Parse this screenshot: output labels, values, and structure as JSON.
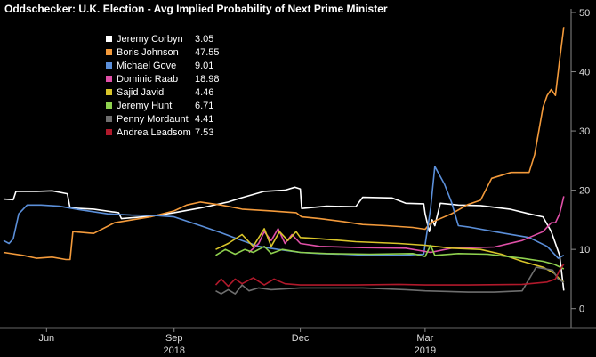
{
  "chart_data": {
    "type": "line",
    "title": "Oddschecker: U.K. Election - Avg Implied Probability of Next Prime Minister",
    "ylim": [
      -2,
      50
    ],
    "yticks": [
      0,
      10,
      20,
      30,
      40,
      50
    ],
    "x_range": [
      "2018-05-01",
      "2019-06-13"
    ],
    "x_tick_labels": [
      {
        "label": "Jun",
        "date": "2018-06-01"
      },
      {
        "label": "Sep",
        "date": "2018-09-01"
      },
      {
        "label": "Dec",
        "date": "2018-12-01"
      },
      {
        "label": "Mar",
        "date": "2019-03-01"
      }
    ],
    "year_labels": [
      {
        "label": "2018",
        "date": "2018-09-01"
      },
      {
        "label": "2019",
        "date": "2019-03-01"
      }
    ],
    "grid": false,
    "legend_position": "top-left",
    "series": [
      {
        "name": "Jeremy Corbyn",
        "last": "3.05",
        "color": "#ffffff",
        "points": [
          [
            "2018-05-01",
            18.5
          ],
          [
            "2018-05-08",
            18.4
          ],
          [
            "2018-05-10",
            19.8
          ],
          [
            "2018-05-25",
            19.8
          ],
          [
            "2018-06-05",
            19.9
          ],
          [
            "2018-06-16",
            19.4
          ],
          [
            "2018-06-18",
            17
          ],
          [
            "2018-07-05",
            16.8
          ],
          [
            "2018-07-23",
            16.2
          ],
          [
            "2018-07-25",
            15.2
          ],
          [
            "2018-08-15",
            15.6
          ],
          [
            "2018-09-01",
            16.2
          ],
          [
            "2018-09-20",
            17
          ],
          [
            "2018-10-10",
            18
          ],
          [
            "2018-10-18",
            18.6
          ],
          [
            "2018-11-05",
            19.8
          ],
          [
            "2018-11-20",
            20
          ],
          [
            "2018-11-27",
            20.5
          ],
          [
            "2018-12-01",
            20.2
          ],
          [
            "2018-12-02",
            16.9
          ],
          [
            "2018-12-20",
            17.3
          ],
          [
            "2019-01-10",
            17.2
          ],
          [
            "2019-01-15",
            18.8
          ],
          [
            "2019-02-05",
            18.7
          ],
          [
            "2019-02-15",
            17.8
          ],
          [
            "2019-02-28",
            17.7
          ],
          [
            "2019-03-01",
            16
          ],
          [
            "2019-03-04",
            13
          ],
          [
            "2019-03-06",
            15
          ],
          [
            "2019-03-08",
            14
          ],
          [
            "2019-03-12",
            17.8
          ],
          [
            "2019-03-25",
            17.5
          ],
          [
            "2019-04-10",
            17.4
          ],
          [
            "2019-05-01",
            16.8
          ],
          [
            "2019-05-15",
            16
          ],
          [
            "2019-05-25",
            15.5
          ],
          [
            "2019-05-31",
            13
          ],
          [
            "2019-06-06",
            9
          ],
          [
            "2019-06-09",
            3.05
          ]
        ]
      },
      {
        "name": "Boris Johnson",
        "last": "47.55",
        "color": "#f39a3b",
        "points": [
          [
            "2018-05-01",
            9.5
          ],
          [
            "2018-05-15",
            9
          ],
          [
            "2018-05-25",
            8.5
          ],
          [
            "2018-06-05",
            8.7
          ],
          [
            "2018-06-15",
            8.3
          ],
          [
            "2018-06-18",
            8.3
          ],
          [
            "2018-06-20",
            13
          ],
          [
            "2018-07-05",
            12.7
          ],
          [
            "2018-07-20",
            14.5
          ],
          [
            "2018-08-15",
            15.5
          ],
          [
            "2018-09-01",
            16.5
          ],
          [
            "2018-09-10",
            17.5
          ],
          [
            "2018-09-20",
            18
          ],
          [
            "2018-10-05",
            17.5
          ],
          [
            "2018-10-20",
            16.8
          ],
          [
            "2018-11-10",
            16.5
          ],
          [
            "2018-11-28",
            16.2
          ],
          [
            "2018-12-02",
            15.5
          ],
          [
            "2018-12-15",
            15.2
          ],
          [
            "2019-01-01",
            14.7
          ],
          [
            "2019-01-15",
            14.2
          ],
          [
            "2019-02-01",
            14
          ],
          [
            "2019-02-20",
            13.7
          ],
          [
            "2019-03-01",
            13.4
          ],
          [
            "2019-03-05",
            14.5
          ],
          [
            "2019-03-20",
            16
          ],
          [
            "2019-04-01",
            17.6
          ],
          [
            "2019-04-10",
            18.3
          ],
          [
            "2019-04-18",
            22
          ],
          [
            "2019-05-02",
            23
          ],
          [
            "2019-05-15",
            23
          ],
          [
            "2019-05-19",
            26
          ],
          [
            "2019-05-25",
            34
          ],
          [
            "2019-05-28",
            36
          ],
          [
            "2019-05-31",
            37
          ],
          [
            "2019-06-03",
            36
          ],
          [
            "2019-06-06",
            42
          ],
          [
            "2019-06-09",
            47.55
          ]
        ]
      },
      {
        "name": "Michael Gove",
        "last": "9.01",
        "color": "#5b8fd9",
        "points": [
          [
            "2018-05-01",
            11.5
          ],
          [
            "2018-05-05",
            11
          ],
          [
            "2018-05-08",
            11.8
          ],
          [
            "2018-05-12",
            16
          ],
          [
            "2018-05-18",
            17.5
          ],
          [
            "2018-05-28",
            17.5
          ],
          [
            "2018-06-10",
            17.3
          ],
          [
            "2018-06-25",
            16.7
          ],
          [
            "2018-07-15",
            16
          ],
          [
            "2018-08-01",
            15.8
          ],
          [
            "2018-08-20",
            15.7
          ],
          [
            "2018-09-01",
            15.5
          ],
          [
            "2018-09-20",
            14
          ],
          [
            "2018-10-05",
            12.8
          ],
          [
            "2018-10-20",
            11.5
          ],
          [
            "2018-11-01",
            10.5
          ],
          [
            "2018-11-15",
            10
          ],
          [
            "2018-12-01",
            9.5
          ],
          [
            "2018-12-15",
            9.3
          ],
          [
            "2019-01-01",
            9.2
          ],
          [
            "2019-01-20",
            9
          ],
          [
            "2019-02-10",
            9
          ],
          [
            "2019-02-28",
            9.2
          ],
          [
            "2019-03-05",
            17
          ],
          [
            "2019-03-08",
            24
          ],
          [
            "2019-03-15",
            21
          ],
          [
            "2019-03-20",
            18
          ],
          [
            "2019-03-25",
            14
          ],
          [
            "2019-04-01",
            13.8
          ],
          [
            "2019-04-20",
            13
          ],
          [
            "2019-05-15",
            12
          ],
          [
            "2019-05-28",
            10.5
          ],
          [
            "2019-06-05",
            8.5
          ],
          [
            "2019-06-09",
            9.01
          ]
        ]
      },
      {
        "name": "Dominic Raab",
        "last": "18.98",
        "color": "#e050a8",
        "points": [
          [
            "2018-10-25",
            9.5
          ],
          [
            "2018-11-01",
            11
          ],
          [
            "2018-11-05",
            13
          ],
          [
            "2018-11-10",
            11.5
          ],
          [
            "2018-11-15",
            13.5
          ],
          [
            "2018-11-20",
            11
          ],
          [
            "2018-11-25",
            12.5
          ],
          [
            "2018-12-01",
            11
          ],
          [
            "2018-12-15",
            10.5
          ],
          [
            "2019-01-15",
            10.3
          ],
          [
            "2019-02-15",
            10.2
          ],
          [
            "2019-03-05",
            9.5
          ],
          [
            "2019-03-20",
            10.2
          ],
          [
            "2019-04-20",
            10.4
          ],
          [
            "2019-05-10",
            11.5
          ],
          [
            "2019-05-25",
            13
          ],
          [
            "2019-05-31",
            14.5
          ],
          [
            "2019-06-03",
            14.5
          ],
          [
            "2019-06-06",
            16
          ],
          [
            "2019-06-09",
            18.98
          ]
        ]
      },
      {
        "name": "Sajid Javid",
        "last": "4.46",
        "color": "#d9c52a",
        "points": [
          [
            "2018-10-01",
            10
          ],
          [
            "2018-10-10",
            11
          ],
          [
            "2018-10-20",
            12.5
          ],
          [
            "2018-10-28",
            10.5
          ],
          [
            "2018-11-05",
            13.5
          ],
          [
            "2018-11-10",
            10.5
          ],
          [
            "2018-11-16",
            13
          ],
          [
            "2018-11-22",
            11.5
          ],
          [
            "2018-11-28",
            13
          ],
          [
            "2018-12-01",
            12
          ],
          [
            "2018-12-15",
            11.8
          ],
          [
            "2019-01-10",
            11.3
          ],
          [
            "2019-02-10",
            11
          ],
          [
            "2019-03-01",
            10.7
          ],
          [
            "2019-03-20",
            10.2
          ],
          [
            "2019-04-10",
            10
          ],
          [
            "2019-04-25",
            9.2
          ],
          [
            "2019-05-10",
            8
          ],
          [
            "2019-05-25",
            7
          ],
          [
            "2019-06-02",
            6
          ],
          [
            "2019-06-06",
            5
          ],
          [
            "2019-06-09",
            4.46
          ]
        ]
      },
      {
        "name": "Jeremy Hunt",
        "last": "6.71",
        "color": "#8fd14f",
        "points": [
          [
            "2018-10-01",
            9
          ],
          [
            "2018-10-08",
            10
          ],
          [
            "2018-10-15",
            9.2
          ],
          [
            "2018-10-22",
            10
          ],
          [
            "2018-10-28",
            9.5
          ],
          [
            "2018-11-05",
            10.5
          ],
          [
            "2018-11-10",
            9.3
          ],
          [
            "2018-11-18",
            10
          ],
          [
            "2018-12-01",
            9.5
          ],
          [
            "2018-12-20",
            9.3
          ],
          [
            "2019-01-20",
            9.2
          ],
          [
            "2019-02-20",
            9.3
          ],
          [
            "2019-03-01",
            8.8
          ],
          [
            "2019-03-05",
            10.7
          ],
          [
            "2019-03-08",
            9
          ],
          [
            "2019-03-25",
            9.3
          ],
          [
            "2019-04-15",
            9.2
          ],
          [
            "2019-05-10",
            8.5
          ],
          [
            "2019-05-25",
            8
          ],
          [
            "2019-06-02",
            7.5
          ],
          [
            "2019-06-09",
            6.71
          ]
        ]
      },
      {
        "name": "Penny Mordaunt",
        "last": "4.41",
        "color": "#6e6e6e",
        "points": [
          [
            "2018-10-01",
            3
          ],
          [
            "2018-10-05",
            2.5
          ],
          [
            "2018-10-10",
            3.2
          ],
          [
            "2018-10-15",
            2.5
          ],
          [
            "2018-10-20",
            4
          ],
          [
            "2018-10-25",
            3
          ],
          [
            "2018-11-01",
            3.5
          ],
          [
            "2018-11-10",
            3.2
          ],
          [
            "2018-12-01",
            3.5
          ],
          [
            "2019-01-15",
            3.5
          ],
          [
            "2019-02-15",
            3.2
          ],
          [
            "2019-03-01",
            3
          ],
          [
            "2019-04-01",
            2.8
          ],
          [
            "2019-04-20",
            2.8
          ],
          [
            "2019-05-10",
            3
          ],
          [
            "2019-05-20",
            7
          ],
          [
            "2019-06-01",
            6.5
          ],
          [
            "2019-06-05",
            5
          ],
          [
            "2019-06-09",
            4.41
          ]
        ]
      },
      {
        "name": "Andrea Leadsom",
        "last": "7.53",
        "color": "#b0192b",
        "points": [
          [
            "2018-10-01",
            4
          ],
          [
            "2018-10-05",
            5
          ],
          [
            "2018-10-10",
            3.8
          ],
          [
            "2018-10-15",
            5
          ],
          [
            "2018-10-20",
            4.2
          ],
          [
            "2018-10-28",
            5.2
          ],
          [
            "2018-11-05",
            4
          ],
          [
            "2018-11-12",
            5
          ],
          [
            "2018-11-20",
            4.2
          ],
          [
            "2018-12-01",
            4
          ],
          [
            "2019-01-10",
            4
          ],
          [
            "2019-02-10",
            4.1
          ],
          [
            "2019-03-01",
            4
          ],
          [
            "2019-04-01",
            4
          ],
          [
            "2019-05-10",
            4.1
          ],
          [
            "2019-05-28",
            4.5
          ],
          [
            "2019-06-03",
            5
          ],
          [
            "2019-06-06",
            6.5
          ],
          [
            "2019-06-09",
            7.53
          ]
        ]
      }
    ]
  }
}
